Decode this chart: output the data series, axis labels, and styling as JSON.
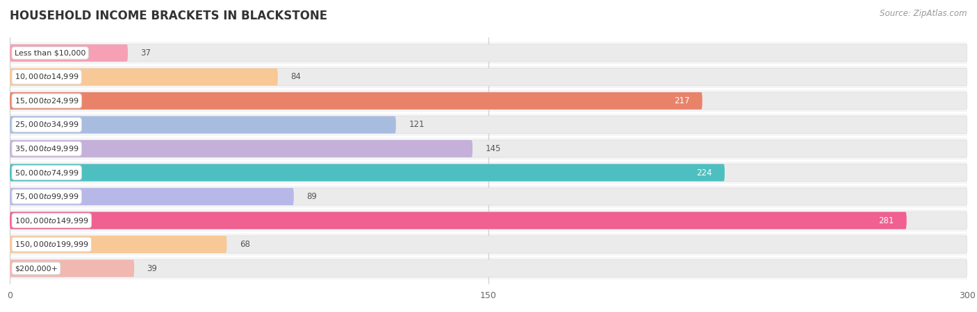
{
  "title": "HOUSEHOLD INCOME BRACKETS IN BLACKSTONE",
  "source": "Source: ZipAtlas.com",
  "categories": [
    "Less than $10,000",
    "$10,000 to $14,999",
    "$15,000 to $24,999",
    "$25,000 to $34,999",
    "$35,000 to $49,999",
    "$50,000 to $74,999",
    "$75,000 to $99,999",
    "$100,000 to $149,999",
    "$150,000 to $199,999",
    "$200,000+"
  ],
  "values": [
    37,
    84,
    217,
    121,
    145,
    224,
    89,
    281,
    68,
    39
  ],
  "bar_colors": [
    "#f5a0b5",
    "#f8c896",
    "#e8836a",
    "#a8bce0",
    "#c4b0d8",
    "#4dbfc0",
    "#b8b8e8",
    "#f06090",
    "#f8c896",
    "#f0b8b0"
  ],
  "bg_track_color": "#ebebeb",
  "bar_row_bg": "#f5f5f7",
  "figure_bg": "#ffffff",
  "xlim": [
    0,
    300
  ],
  "xticks": [
    0,
    150,
    300
  ],
  "title_fontsize": 12,
  "source_fontsize": 8.5,
  "label_fontsize": 8,
  "value_fontsize": 8.5,
  "value_threshold": 160
}
